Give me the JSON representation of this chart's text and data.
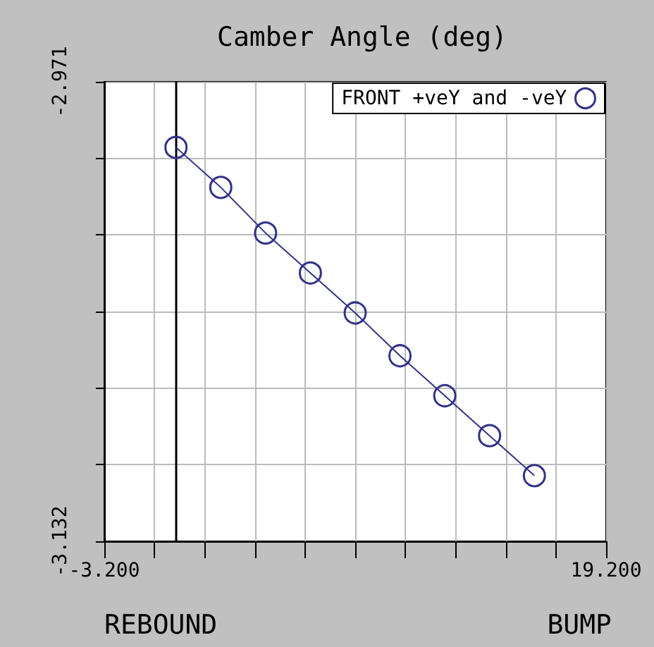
{
  "chart_data": {
    "type": "line",
    "title": "Camber Angle (deg)",
    "annotations": [
      "REBOUND",
      "BUMP"
    ],
    "x": [
      0,
      2,
      4,
      6,
      8,
      10,
      12,
      14,
      16
    ],
    "series": [
      {
        "name": "FRONT +veY and -veY",
        "color": "#333388",
        "values": [
          -2.994,
          -3.008,
          -3.024,
          -3.038,
          -3.052,
          -3.067,
          -3.081,
          -3.095,
          -3.109
        ]
      }
    ],
    "xlim": [
      -3.2,
      19.2
    ],
    "xticks": [
      {
        "value": -3.2,
        "label": "-3.200"
      },
      {
        "value": -0.96,
        "label": null
      },
      {
        "value": 1.28,
        "label": null
      },
      {
        "value": 3.52,
        "label": null
      },
      {
        "value": 5.76,
        "label": null
      },
      {
        "value": 8,
        "label": null
      },
      {
        "value": 10.24,
        "label": null
      },
      {
        "value": 12.48,
        "label": null
      },
      {
        "value": 14.72,
        "label": null
      },
      {
        "value": 16.96,
        "label": null
      },
      {
        "value": 19.2,
        "label": "19.200"
      }
    ],
    "ylim": [
      -3.132,
      -2.971
    ],
    "yticks": [
      -3.132,
      {
        "value": -3.10517,
        "label": null
      },
      {
        "value": -3.07833,
        "label": null
      },
      {
        "value": -3.0515,
        "label": null
      },
      {
        "value": -3.02467,
        "label": null
      },
      {
        "value": -2.99783,
        "label": null
      },
      -2.971
    ],
    "ref_lines": [
      {
        "axis": "x",
        "value": 0,
        "label": null,
        "color": "#000000"
      }
    ],
    "grid": true,
    "legend": "top right",
    "marker": "circle",
    "line_style": "solid"
  }
}
